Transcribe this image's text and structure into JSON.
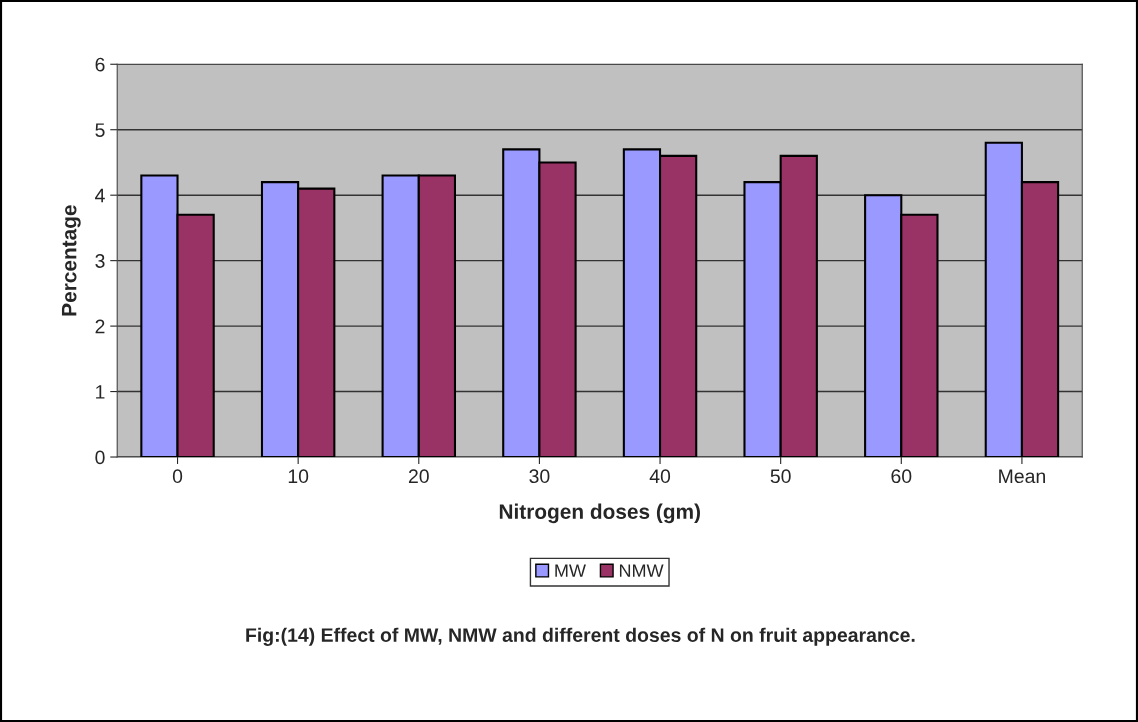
{
  "chart_data": {
    "type": "bar",
    "categories": [
      "0",
      "10",
      "20",
      "30",
      "40",
      "50",
      "60",
      "Mean"
    ],
    "series": [
      {
        "name": "MW",
        "color": "#9999ff",
        "values": [
          4.3,
          4.2,
          4.3,
          4.7,
          4.7,
          4.2,
          4.0,
          4.8
        ]
      },
      {
        "name": "NMW",
        "color": "#993366",
        "values": [
          3.7,
          4.1,
          4.3,
          4.5,
          4.6,
          4.6,
          3.7,
          4.2
        ]
      }
    ],
    "xlabel": "Nitrogen doses (gm)",
    "ylabel": "Percentage",
    "ylim": [
      0,
      6
    ],
    "yticks": [
      0,
      1,
      2,
      3,
      4,
      5,
      6
    ],
    "grid": "y",
    "legend": "bottom",
    "annotations": [
      "Fig:(14) Effect of MW, NMW and different doses of N on fruit appearance."
    ]
  }
}
